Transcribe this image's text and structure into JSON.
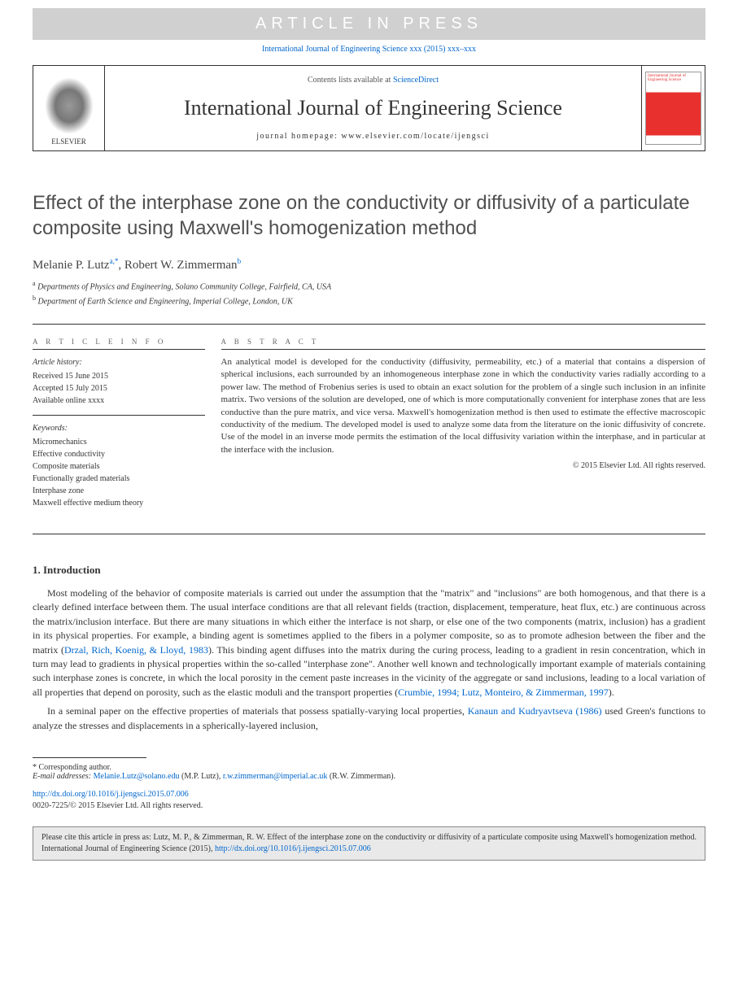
{
  "press_banner": "ARTICLE IN PRESS",
  "citation_top": "International Journal of Engineering Science xxx (2015) xxx–xxx",
  "header": {
    "contents_prefix": "Contents lists available at ",
    "contents_link": "ScienceDirect",
    "journal_name": "International Journal of Engineering Science",
    "homepage": "journal homepage: www.elsevier.com/locate/ijengsci",
    "publisher_logo_text": "ELSEVIER",
    "cover_text": "International Journal of Engineering Science"
  },
  "title": "Effect of the interphase zone on the conductivity or diffusivity of a particulate composite using Maxwell's homogenization method",
  "authors_html": "Melanie P. Lutz|a,*|, Robert W. Zimmerman|b|",
  "authors": [
    {
      "name": "Melanie P. Lutz",
      "markers": "a,*"
    },
    {
      "name": "Robert W. Zimmerman",
      "markers": "b"
    }
  ],
  "affiliations": [
    {
      "marker": "a",
      "text": "Departments of Physics and Engineering, Solano Community College, Fairfield, CA, USA"
    },
    {
      "marker": "b",
      "text": "Department of Earth Science and Engineering, Imperial College, London, UK"
    }
  ],
  "article_info": {
    "heading": "A R T I C L E   I N F O",
    "history_label": "Article history:",
    "history": [
      "Received 15 June 2015",
      "Accepted 15 July 2015",
      "Available online xxxx"
    ],
    "keywords_label": "Keywords:",
    "keywords": [
      "Micromechanics",
      "Effective conductivity",
      "Composite materials",
      "Functionally graded materials",
      "Interphase zone",
      "Maxwell effective medium theory"
    ]
  },
  "abstract": {
    "heading": "A B S T R A C T",
    "text": "An analytical model is developed for the conductivity (diffusivity, permeability, etc.) of a material that contains a dispersion of spherical inclusions, each surrounded by an inhomogeneous interphase zone in which the conductivity varies radially according to a power law. The method of Frobenius series is used to obtain an exact solution for the problem of a single such inclusion in an infinite matrix. Two versions of the solution are developed, one of which is more computationally convenient for interphase zones that are less conductive than the pure matrix, and vice versa. Maxwell's homogenization method is then used to estimate the effective macroscopic conductivity of the medium. The developed model is used to analyze some data from the literature on the ionic diffusivity of concrete. Use of the model in an inverse mode permits the estimation of the local diffusivity variation within the interphase, and in particular at the interface with the inclusion.",
    "copyright": "© 2015 Elsevier Ltd. All rights reserved."
  },
  "section1": {
    "heading": "1. Introduction",
    "para1_pre": "Most modeling of the behavior of composite materials is carried out under the assumption that the \"matrix\" and \"inclusions\" are both homogenous, and that there is a clearly defined interface between them. The usual interface conditions are that all relevant fields (traction, displacement, temperature, heat flux, etc.) are continuous across the matrix/inclusion interface. But there are many situations in which either the interface is not sharp, or else one of the two components (matrix, inclusion) has a gradient in its physical properties. For example, a binding agent is sometimes applied to the fibers in a polymer composite, so as to promote adhesion between the fiber and the matrix (",
    "para1_link1": "Drzal, Rich, Koenig, & Lloyd, 1983",
    "para1_mid": "). This binding agent diffuses into the matrix during the curing process, leading to a gradient in resin concentration, which in turn may lead to gradients in physical properties within the so-called \"interphase zone\". Another well known and technologically important example of materials containing such interphase zones is concrete, in which the local porosity in the cement paste increases in the vicinity of the aggregate or sand inclusions, leading to a local variation of all properties that depend on porosity, such as the elastic moduli and the transport properties (",
    "para1_link2": "Crumbie, 1994; Lutz, Monteiro, & Zimmerman, 1997",
    "para1_post": ").",
    "para2_pre": "In a seminal paper on the effective properties of materials that possess spatially-varying local properties, ",
    "para2_link": "Kanaun and Kudryavtseva (1986)",
    "para2_post": " used Green's functions to analyze the stresses and displacements in a spherically-layered inclusion,"
  },
  "footer": {
    "corr_marker": "* Corresponding author.",
    "email_label": "E-mail addresses: ",
    "email1": "Melanie.Lutz@solano.edu",
    "email1_who": " (M.P. Lutz), ",
    "email2": "r.w.zimmerman@imperial.ac.uk",
    "email2_who": " (R.W. Zimmerman).",
    "doi": "http://dx.doi.org/10.1016/j.ijengsci.2015.07.006",
    "issn_line": "0020-7225/© 2015 Elsevier Ltd. All rights reserved."
  },
  "cite_box": {
    "text_pre": "Please cite this article in press as: Lutz, M. P., & Zimmerman, R. W. Effect of the interphase zone on the conductivity or diffusivity of a particulate composite using Maxwell's homogenization method. International Journal of Engineering Science (2015), ",
    "link": "http://dx.doi.org/10.1016/j.ijengsci.2015.07.006"
  },
  "colors": {
    "link": "#0066cc",
    "banner_bg": "#d0d0d0",
    "cover_red": "#e8312f",
    "cite_bg": "#e9e9e9"
  }
}
